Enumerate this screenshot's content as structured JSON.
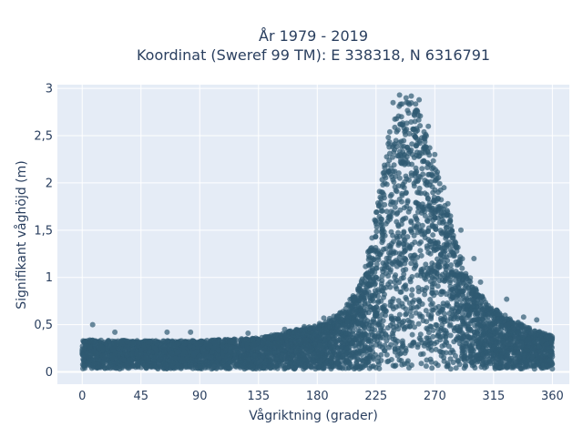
{
  "chart_data": {
    "type": "scatter",
    "title_line1": "År 1979 - 2019",
    "title_line2": "Koordinat (Sweref 99 TM): E 338318, N 6316791",
    "xlabel": "Vågriktning (grader)",
    "ylabel": "Signifikant våghöjd (m)",
    "xlim": [
      -19,
      373
    ],
    "ylim": [
      -0.13,
      3.04
    ],
    "x_ticks": [
      0,
      45,
      90,
      135,
      180,
      225,
      270,
      315,
      360
    ],
    "x_tick_labels": [
      "0",
      "45",
      "90",
      "135",
      "180",
      "225",
      "270",
      "315",
      "360"
    ],
    "y_ticks": [
      0,
      0.5,
      1,
      1.5,
      2,
      2.5,
      3
    ],
    "y_tick_labels": [
      "0",
      "0,5",
      "1",
      "1,5",
      "2",
      "2,5",
      "3"
    ],
    "grid": true,
    "marker_color": "#2f5a72",
    "background_color": "#e5ecf6",
    "envelope": [
      {
        "x": 0,
        "lo": 0.0,
        "hi": 0.34
      },
      {
        "x": 45,
        "lo": 0.0,
        "hi": 0.33
      },
      {
        "x": 90,
        "lo": 0.0,
        "hi": 0.33
      },
      {
        "x": 135,
        "lo": 0.0,
        "hi": 0.36
      },
      {
        "x": 180,
        "lo": 0.0,
        "hi": 0.5
      },
      {
        "x": 200,
        "lo": 0.0,
        "hi": 0.65
      },
      {
        "x": 215,
        "lo": 0.0,
        "hi": 1.0
      },
      {
        "x": 225,
        "lo": 0.0,
        "hi": 1.7
      },
      {
        "x": 235,
        "lo": 0.0,
        "hi": 2.55
      },
      {
        "x": 245,
        "lo": 0.0,
        "hi": 2.9
      },
      {
        "x": 255,
        "lo": 0.0,
        "hi": 2.85
      },
      {
        "x": 265,
        "lo": 0.0,
        "hi": 2.5
      },
      {
        "x": 275,
        "lo": 0.0,
        "hi": 1.95
      },
      {
        "x": 285,
        "lo": 0.0,
        "hi": 1.45
      },
      {
        "x": 295,
        "lo": 0.0,
        "hi": 1.05
      },
      {
        "x": 310,
        "lo": 0.0,
        "hi": 0.72
      },
      {
        "x": 330,
        "lo": 0.0,
        "hi": 0.55
      },
      {
        "x": 345,
        "lo": 0.0,
        "hi": 0.45
      },
      {
        "x": 360,
        "lo": 0.0,
        "hi": 0.38
      }
    ],
    "outliers": [
      [
        8,
        0.5
      ],
      [
        25,
        0.42
      ],
      [
        65,
        0.42
      ],
      [
        83,
        0.42
      ],
      [
        127,
        0.41
      ],
      [
        155,
        0.45
      ],
      [
        170,
        0.48
      ],
      [
        185,
        0.57
      ],
      [
        300,
        1.2
      ],
      [
        290,
        1.5
      ],
      [
        280,
        1.78
      ],
      [
        277,
        1.95
      ],
      [
        282,
        1.65
      ],
      [
        305,
        0.95
      ],
      [
        325,
        0.77
      ],
      [
        338,
        0.58
      ],
      [
        348,
        0.55
      ],
      [
        243,
        2.93
      ],
      [
        248,
        2.9
      ],
      [
        238,
        2.85
      ],
      [
        252,
        2.92
      ],
      [
        258,
        2.88
      ],
      [
        265,
        2.6
      ],
      [
        270,
        2.3
      ]
    ]
  }
}
